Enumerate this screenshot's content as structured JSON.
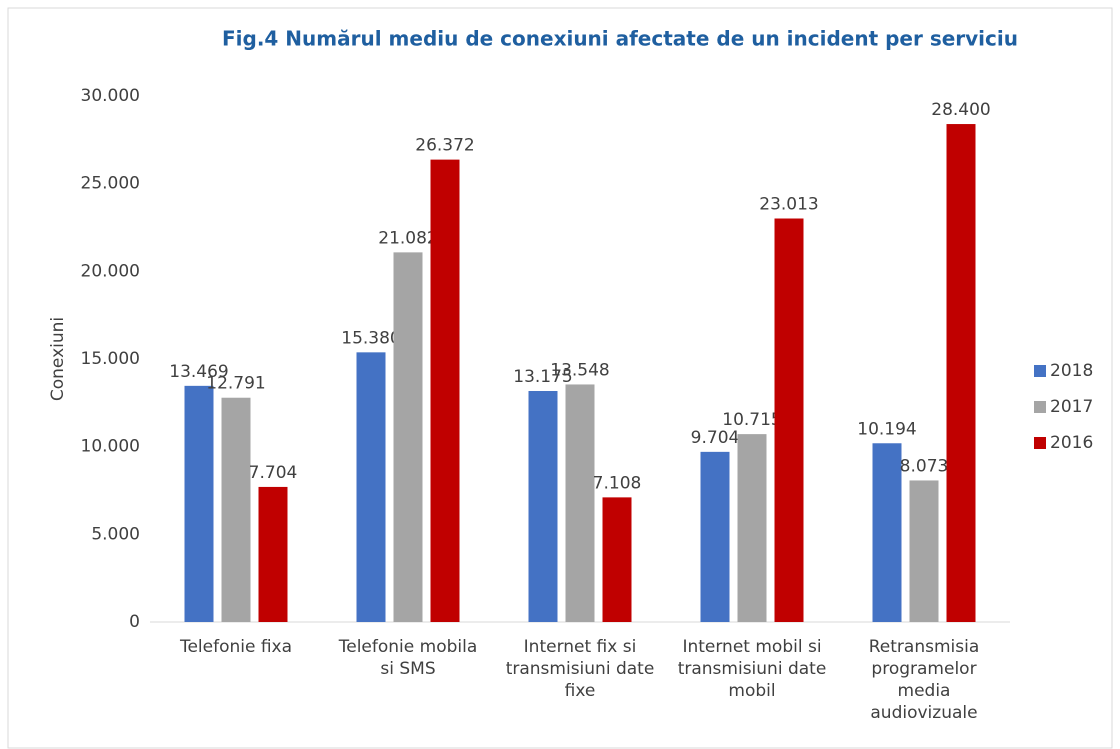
{
  "chart_data": {
    "type": "bar",
    "title": "Fig.4 Numărul mediu de conexiuni afectate de un incident per serviciu",
    "ylabel": "Conexiuni",
    "categories": [
      "Telefonie fixa",
      "Telefonie mobila si SMS",
      "Internet fix si transmisiuni date fixe",
      "Internet mobil si transmisiuni date mobil",
      "Retransmisia programelor media audiovizuale"
    ],
    "series": [
      {
        "name": "2018",
        "color": "#4472c4",
        "values": [
          13469,
          15380,
          13175,
          9704,
          10194
        ],
        "value_labels": [
          "13.469",
          "15.380",
          "13.175",
          "9.704",
          "10.194"
        ]
      },
      {
        "name": "2017",
        "color": "#a5a5a5",
        "values": [
          12791,
          21082,
          13548,
          10715,
          8073
        ],
        "value_labels": [
          "12.791",
          "21.082",
          "13.548",
          "10.715",
          "8.073"
        ]
      },
      {
        "name": "2016",
        "color": "#c00000",
        "values": [
          7704,
          26372,
          7108,
          23013,
          28400
        ],
        "value_labels": [
          "7.704",
          "26.372",
          "7.108",
          "23.013",
          "28.400"
        ]
      }
    ],
    "ylim": [
      0,
      30000
    ],
    "yticks": [
      0,
      {
        "value": 5000,
        "label": "5.000"
      },
      {
        "value": 10000,
        "label": "10.000"
      },
      {
        "value": 15000,
        "label": "15.000"
      },
      {
        "value": 20000,
        "label": "20.000"
      },
      {
        "value": 25000,
        "label": "25.000"
      },
      {
        "value": 30000,
        "label": "30.000"
      }
    ],
    "legend": "right"
  }
}
